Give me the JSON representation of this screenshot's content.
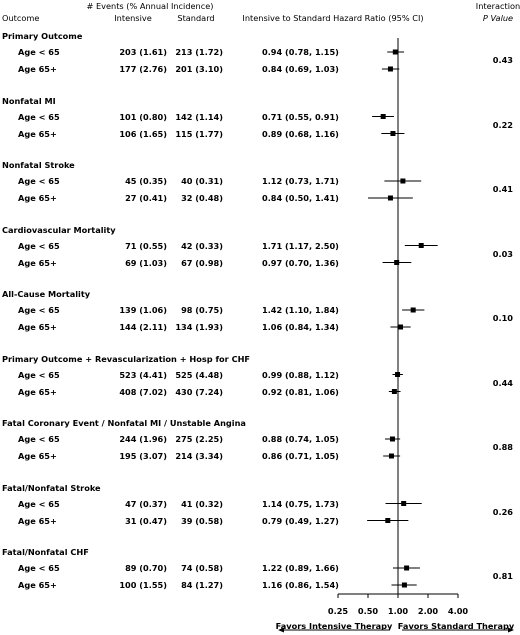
{
  "header": {
    "outcome": "Outcome",
    "events": "# Events (% Annual Incidence)",
    "intensive": "Intensive",
    "standard": "Standard",
    "hr": "Intensive to Standard Hazard Ratio (95% CI)",
    "interaction": "Interaction",
    "pvalue": "P Value"
  },
  "footer": {
    "favors_intensive": "Favors Intensive Therapy",
    "favors_standard": "Favors Standard Therapy"
  },
  "chart_data": {
    "type": "forest",
    "x_scale": "log",
    "xlim": [
      0.25,
      4.0
    ],
    "x_ticks": [
      "0.25",
      "0.50",
      "1.00",
      "2.00",
      "4.00"
    ],
    "x_tick_values": [
      0.25,
      0.5,
      1.0,
      2.0,
      4.0
    ],
    "reference_line": 1.0,
    "groups": [
      {
        "name": "Primary Outcome",
        "p": "0.43",
        "rows": [
          {
            "label": "Age < 65",
            "intensive": "203 (1.61)",
            "standard": "213 (1.72)",
            "hr_text": "0.94 (0.78, 1.15)",
            "hr": 0.94,
            "lo": 0.78,
            "hi": 1.15
          },
          {
            "label": "Age 65+",
            "intensive": "177 (2.76)",
            "standard": "201 (3.10)",
            "hr_text": "0.84 (0.69, 1.03)",
            "hr": 0.84,
            "lo": 0.69,
            "hi": 1.03
          }
        ]
      },
      {
        "name": "Nonfatal MI",
        "p": "0.22",
        "rows": [
          {
            "label": "Age < 65",
            "intensive": "101 (0.80)",
            "standard": "142 (1.14)",
            "hr_text": "0.71 (0.55, 0.91)",
            "hr": 0.71,
            "lo": 0.55,
            "hi": 0.91
          },
          {
            "label": "Age 65+",
            "intensive": "106 (1.65)",
            "standard": "115 (1.77)",
            "hr_text": "0.89 (0.68, 1.16)",
            "hr": 0.89,
            "lo": 0.68,
            "hi": 1.16
          }
        ]
      },
      {
        "name": "Nonfatal Stroke",
        "p": "0.41",
        "rows": [
          {
            "label": "Age < 65",
            "intensive": "45 (0.35)",
            "standard": "40 (0.31)",
            "hr_text": "1.12 (0.73, 1.71)",
            "hr": 1.12,
            "lo": 0.73,
            "hi": 1.71
          },
          {
            "label": "Age 65+",
            "intensive": "27 (0.41)",
            "standard": "32 (0.48)",
            "hr_text": "0.84 (0.50, 1.41)",
            "hr": 0.84,
            "lo": 0.5,
            "hi": 1.41
          }
        ]
      },
      {
        "name": "Cardiovascular Mortality",
        "p": "0.03",
        "rows": [
          {
            "label": "Age < 65",
            "intensive": "71 (0.55)",
            "standard": "42 (0.33)",
            "hr_text": "1.71 (1.17, 2.50)",
            "hr": 1.71,
            "lo": 1.17,
            "hi": 2.5
          },
          {
            "label": "Age 65+",
            "intensive": "69 (1.03)",
            "standard": "67 (0.98)",
            "hr_text": "0.97 (0.70, 1.36)",
            "hr": 0.97,
            "lo": 0.7,
            "hi": 1.36
          }
        ]
      },
      {
        "name": "All-Cause Mortality",
        "p": "0.10",
        "rows": [
          {
            "label": "Age < 65",
            "intensive": "139 (1.06)",
            "standard": "98 (0.75)",
            "hr_text": "1.42 (1.10, 1.84)",
            "hr": 1.42,
            "lo": 1.1,
            "hi": 1.84
          },
          {
            "label": "Age 65+",
            "intensive": "144 (2.11)",
            "standard": "134 (1.93)",
            "hr_text": "1.06 (0.84, 1.34)",
            "hr": 1.06,
            "lo": 0.84,
            "hi": 1.34
          }
        ]
      },
      {
        "name": "Primary Outcome + Revascularization + Hosp for CHF",
        "p": "0.44",
        "rows": [
          {
            "label": "Age < 65",
            "intensive": "523 (4.41)",
            "standard": "525 (4.48)",
            "hr_text": "0.99 (0.88, 1.12)",
            "hr": 0.99,
            "lo": 0.88,
            "hi": 1.12
          },
          {
            "label": "Age 65+",
            "intensive": "408 (7.02)",
            "standard": "430 (7.24)",
            "hr_text": "0.92 (0.81, 1.06)",
            "hr": 0.92,
            "lo": 0.81,
            "hi": 1.06
          }
        ]
      },
      {
        "name": "Fatal Coronary Event / Nonfatal MI / Unstable Angina",
        "p": "0.88",
        "rows": [
          {
            "label": "Age < 65",
            "intensive": "244 (1.96)",
            "standard": "275 (2.25)",
            "hr_text": "0.88 (0.74, 1.05)",
            "hr": 0.88,
            "lo": 0.74,
            "hi": 1.05
          },
          {
            "label": "Age 65+",
            "intensive": "195 (3.07)",
            "standard": "214 (3.34)",
            "hr_text": "0.86 (0.71, 1.05)",
            "hr": 0.86,
            "lo": 0.71,
            "hi": 1.05
          }
        ]
      },
      {
        "name": "Fatal/Nonfatal Stroke",
        "p": "0.26",
        "rows": [
          {
            "label": "Age < 65",
            "intensive": "47 (0.37)",
            "standard": "41 (0.32)",
            "hr_text": "1.14 (0.75, 1.73)",
            "hr": 1.14,
            "lo": 0.75,
            "hi": 1.73
          },
          {
            "label": "Age 65+",
            "intensive": "31 (0.47)",
            "standard": "39 (0.58)",
            "hr_text": "0.79 (0.49, 1.27)",
            "hr": 0.79,
            "lo": 0.49,
            "hi": 1.27
          }
        ]
      },
      {
        "name": "Fatal/Nonfatal CHF",
        "p": "0.81",
        "rows": [
          {
            "label": "Age < 65",
            "intensive": "89 (0.70)",
            "standard": "74 (0.58)",
            "hr_text": "1.22 (0.89, 1.66)",
            "hr": 1.22,
            "lo": 0.89,
            "hi": 1.66
          },
          {
            "label": "Age 65+",
            "intensive": "100 (1.55)",
            "standard": "84 (1.27)",
            "hr_text": "1.16 (0.86, 1.54)",
            "hr": 1.16,
            "lo": 0.86,
            "hi": 1.54
          }
        ]
      }
    ]
  }
}
